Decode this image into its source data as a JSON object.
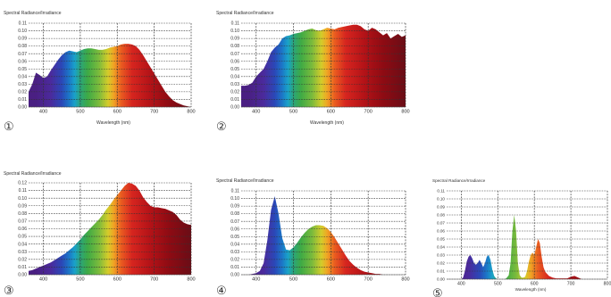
{
  "colors": {
    "spectrum": [
      [
        380,
        "#4a1f82"
      ],
      [
        420,
        "#4b2a9c"
      ],
      [
        450,
        "#2a48b8"
      ],
      [
        470,
        "#1b78c8"
      ],
      [
        485,
        "#1aa2c9"
      ],
      [
        500,
        "#2aa57a"
      ],
      [
        520,
        "#3eaa45"
      ],
      [
        550,
        "#7bbb3c"
      ],
      [
        575,
        "#d4cc2a"
      ],
      [
        590,
        "#f0a524"
      ],
      [
        610,
        "#ea5d20"
      ],
      [
        640,
        "#d6251f"
      ],
      [
        690,
        "#b31217"
      ],
      [
        740,
        "#8e0b13"
      ],
      [
        800,
        "#6a0d16"
      ]
    ],
    "grid": "#333333",
    "text": "#333333"
  },
  "chart_data": [
    {
      "type": "area",
      "panel_number": "①",
      "ylabel": "Spectral Radiance/Irradiance",
      "xlabel": "Wavelength (nm)",
      "xlim": [
        360,
        800
      ],
      "ylim": [
        0,
        0.11
      ],
      "x_ticks": [
        400,
        500,
        600,
        700,
        800
      ],
      "y_ticks": [
        "0.00",
        "0.01",
        "0.02",
        "0.03",
        "0.04",
        "0.05",
        "0.06",
        "0.07",
        "0.08",
        "0.09",
        "0.10",
        "0.11"
      ],
      "grid": true,
      "x": [
        360,
        370,
        380,
        390,
        400,
        410,
        420,
        430,
        440,
        450,
        460,
        470,
        480,
        490,
        500,
        510,
        520,
        530,
        540,
        550,
        560,
        570,
        580,
        590,
        600,
        610,
        620,
        630,
        640,
        650,
        660,
        670,
        680,
        690,
        700,
        710,
        720,
        730,
        740,
        750,
        760,
        770,
        780,
        790,
        800
      ],
      "y": [
        0.02,
        0.03,
        0.045,
        0.042,
        0.038,
        0.04,
        0.048,
        0.055,
        0.062,
        0.068,
        0.072,
        0.074,
        0.073,
        0.072,
        0.074,
        0.076,
        0.077,
        0.077,
        0.076,
        0.075,
        0.075,
        0.076,
        0.078,
        0.079,
        0.08,
        0.082,
        0.083,
        0.083,
        0.082,
        0.08,
        0.075,
        0.068,
        0.06,
        0.052,
        0.044,
        0.036,
        0.028,
        0.02,
        0.014,
        0.009,
        0.006,
        0.004,
        0.002,
        0.001,
        0.0
      ]
    },
    {
      "type": "area",
      "panel_number": "②",
      "ylabel": "Spectral Radiance/Irradiance",
      "xlabel": "Wavelength (nm)",
      "xlim": [
        360,
        800
      ],
      "ylim": [
        0,
        0.11
      ],
      "x_ticks": [
        400,
        500,
        600,
        700,
        800
      ],
      "y_ticks": [
        "0.00",
        "0.01",
        "0.02",
        "0.03",
        "0.04",
        "0.05",
        "0.06",
        "0.07",
        "0.08",
        "0.09",
        "0.10",
        "0.11"
      ],
      "grid": true,
      "x": [
        360,
        370,
        380,
        390,
        400,
        410,
        420,
        430,
        440,
        450,
        460,
        470,
        480,
        490,
        500,
        510,
        520,
        530,
        540,
        550,
        560,
        570,
        580,
        590,
        600,
        610,
        620,
        630,
        640,
        650,
        660,
        670,
        680,
        690,
        700,
        710,
        720,
        730,
        740,
        750,
        760,
        770,
        780,
        790,
        800
      ],
      "y": [
        0.028,
        0.028,
        0.029,
        0.032,
        0.04,
        0.045,
        0.05,
        0.06,
        0.072,
        0.078,
        0.082,
        0.09,
        0.093,
        0.094,
        0.096,
        0.097,
        0.098,
        0.1,
        0.102,
        0.103,
        0.101,
        0.1,
        0.102,
        0.104,
        0.103,
        0.102,
        0.104,
        0.105,
        0.106,
        0.107,
        0.108,
        0.108,
        0.106,
        0.102,
        0.1,
        0.104,
        0.102,
        0.098,
        0.094,
        0.097,
        0.09,
        0.093,
        0.096,
        0.092,
        0.094
      ]
    },
    {
      "type": "area",
      "panel_number": "③",
      "ylabel": "Spectral Radiance/Irradiance",
      "xlabel": "",
      "xlim": [
        360,
        800
      ],
      "ylim": [
        0,
        0.12
      ],
      "x_ticks": [
        400,
        500,
        600,
        700,
        800
      ],
      "y_ticks": [
        "0.00",
        "0.01",
        "0.02",
        "0.03",
        "0.04",
        "0.05",
        "0.06",
        "0.07",
        "0.08",
        "0.09",
        "0.10",
        "0.11",
        "0.12"
      ],
      "grid": true,
      "x": [
        360,
        370,
        380,
        390,
        400,
        410,
        420,
        430,
        440,
        450,
        460,
        470,
        480,
        490,
        500,
        510,
        520,
        530,
        540,
        550,
        560,
        570,
        580,
        590,
        600,
        610,
        620,
        630,
        640,
        650,
        660,
        670,
        680,
        690,
        700,
        710,
        720,
        730,
        740,
        750,
        760,
        770,
        780,
        790,
        800
      ],
      "y": [
        0.005,
        0.006,
        0.008,
        0.01,
        0.012,
        0.014,
        0.016,
        0.019,
        0.022,
        0.025,
        0.028,
        0.032,
        0.036,
        0.041,
        0.046,
        0.052,
        0.057,
        0.062,
        0.067,
        0.072,
        0.078,
        0.085,
        0.091,
        0.098,
        0.104,
        0.11,
        0.116,
        0.12,
        0.119,
        0.116,
        0.11,
        0.101,
        0.095,
        0.09,
        0.088,
        0.088,
        0.087,
        0.086,
        0.084,
        0.082,
        0.078,
        0.072,
        0.068,
        0.066,
        0.065
      ]
    },
    {
      "type": "area",
      "panel_number": "④",
      "ylabel": "Spectral Radiance/Irradiance",
      "xlabel": "",
      "xlim": [
        360,
        800
      ],
      "ylim": [
        0,
        0.11
      ],
      "x_ticks": [
        400,
        500,
        600,
        700,
        800
      ],
      "y_ticks": [
        "0.00",
        "0.01",
        "0.02",
        "0.03",
        "0.04",
        "0.05",
        "0.06",
        "0.07",
        "0.08",
        "0.09",
        "0.10",
        "0.11"
      ],
      "grid": true,
      "x": [
        360,
        370,
        380,
        390,
        400,
        410,
        420,
        430,
        440,
        450,
        460,
        470,
        480,
        490,
        500,
        510,
        520,
        530,
        540,
        550,
        560,
        570,
        580,
        590,
        600,
        610,
        620,
        630,
        640,
        650,
        660,
        670,
        680,
        690,
        700,
        710,
        720,
        730,
        740,
        750,
        760,
        770,
        780,
        790,
        800
      ],
      "y": [
        0.0,
        0.0,
        0.0,
        0.001,
        0.002,
        0.005,
        0.015,
        0.045,
        0.085,
        0.103,
        0.08,
        0.048,
        0.033,
        0.032,
        0.036,
        0.042,
        0.049,
        0.055,
        0.06,
        0.063,
        0.065,
        0.065,
        0.064,
        0.061,
        0.056,
        0.049,
        0.041,
        0.033,
        0.025,
        0.018,
        0.013,
        0.009,
        0.006,
        0.004,
        0.003,
        0.002,
        0.001,
        0.001,
        0.0,
        0.0,
        0.0,
        0.0,
        0.0,
        0.0,
        0.0
      ]
    },
    {
      "type": "area",
      "panel_number": "⑤",
      "ylabel": "Spectral Radiance/Irradiance",
      "xlabel": "Wavelength (nm)",
      "xlim": [
        360,
        800
      ],
      "ylim": [
        0,
        0.11
      ],
      "x_ticks": [
        400,
        500,
        600,
        700,
        800
      ],
      "y_ticks": [
        "0.00",
        "0.01",
        "0.02",
        "0.03",
        "0.04",
        "0.05",
        "0.06",
        "0.07",
        "0.08",
        "0.09",
        "0.10",
        "0.11"
      ],
      "grid": true,
      "x": [
        360,
        380,
        400,
        405,
        410,
        415,
        420,
        425,
        430,
        435,
        440,
        445,
        450,
        455,
        460,
        465,
        470,
        475,
        480,
        485,
        490,
        495,
        500,
        505,
        510,
        515,
        520,
        525,
        530,
        535,
        540,
        545,
        550,
        555,
        560,
        565,
        570,
        575,
        580,
        585,
        590,
        595,
        600,
        605,
        610,
        615,
        620,
        625,
        630,
        640,
        650,
        660,
        670,
        680,
        690,
        700,
        710,
        720,
        730,
        740,
        750,
        760,
        780,
        800
      ],
      "y": [
        0,
        0,
        0,
        0.002,
        0.01,
        0.022,
        0.028,
        0.03,
        0.026,
        0.02,
        0.018,
        0.02,
        0.024,
        0.02,
        0.015,
        0.02,
        0.028,
        0.03,
        0.024,
        0.012,
        0.004,
        0.001,
        0,
        0,
        0,
        0,
        0,
        0.002,
        0.005,
        0.02,
        0.06,
        0.08,
        0.06,
        0.02,
        0.005,
        0.002,
        0.002,
        0.003,
        0.01,
        0.022,
        0.03,
        0.033,
        0.03,
        0.04,
        0.05,
        0.045,
        0.028,
        0.015,
        0.009,
        0.004,
        0.002,
        0.001,
        0.001,
        0.001,
        0.001,
        0.003,
        0.004,
        0.002,
        0,
        0,
        0,
        0,
        0,
        0
      ]
    }
  ]
}
